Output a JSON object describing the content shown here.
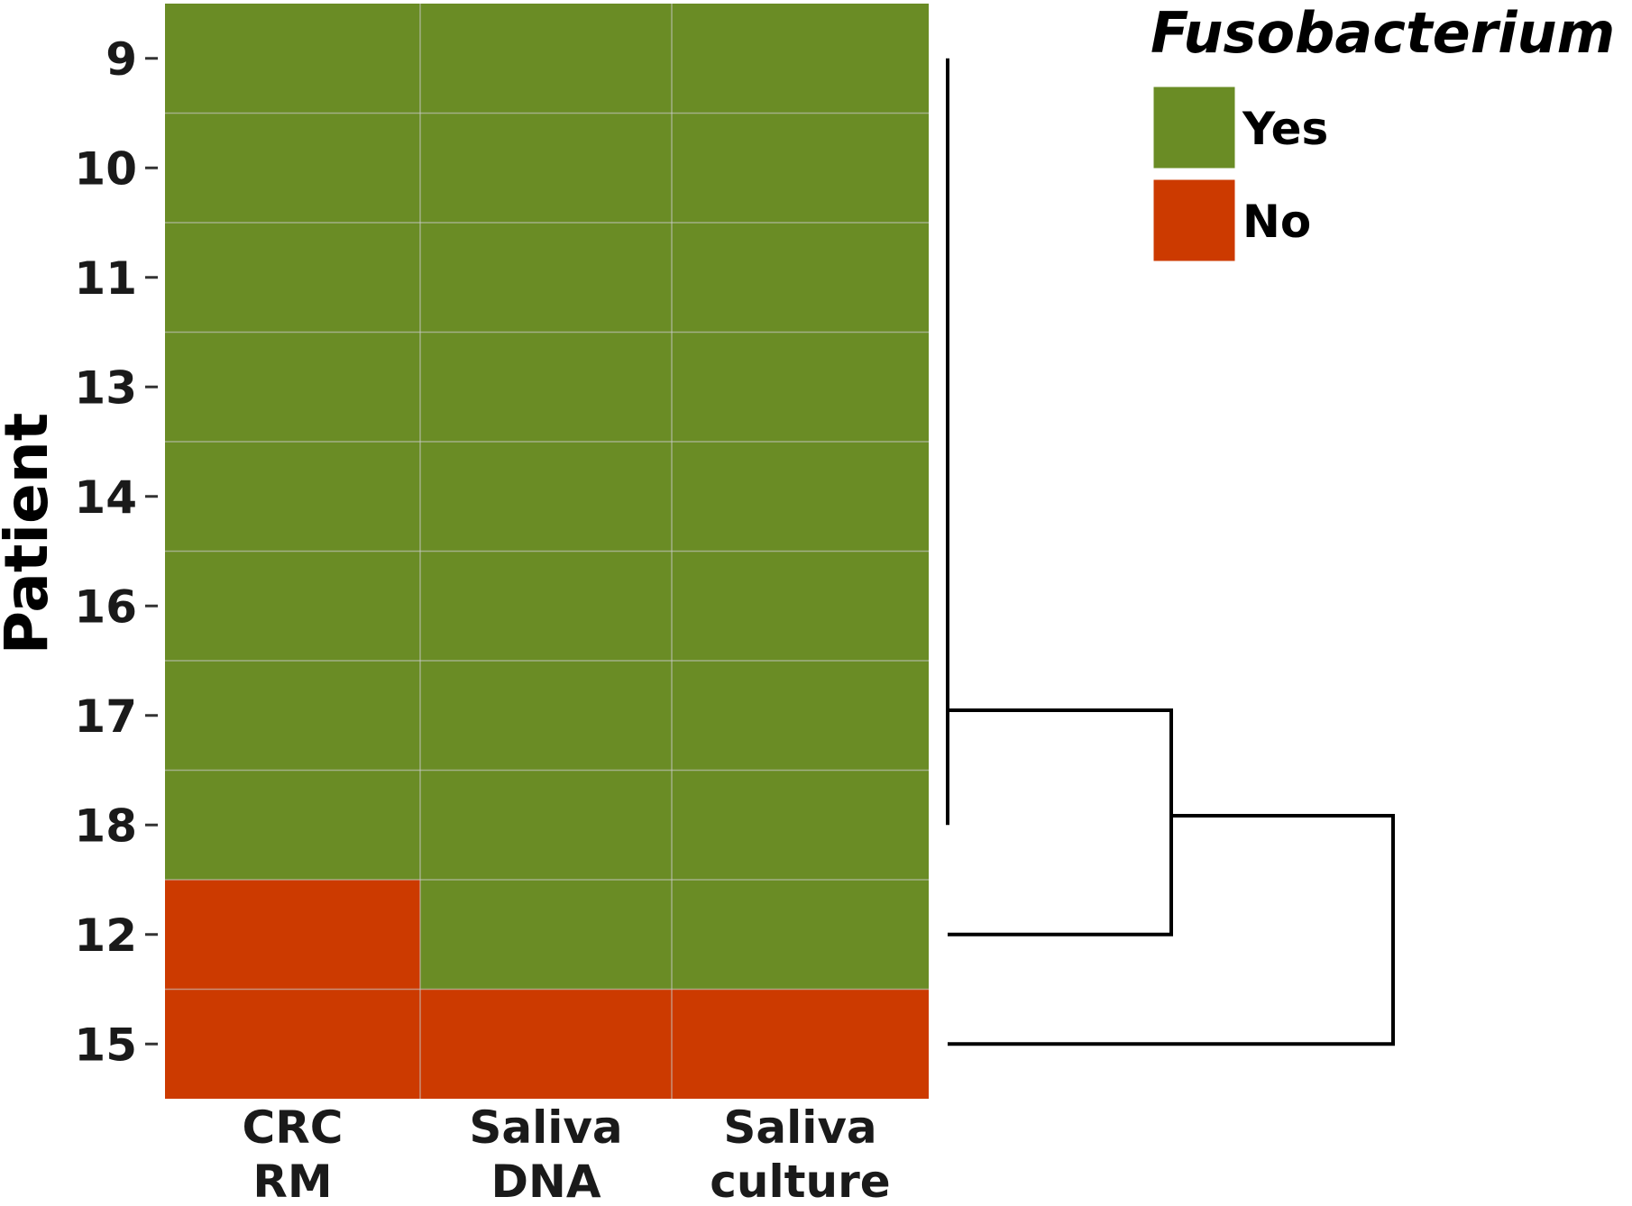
{
  "chart_data": {
    "type": "heatmap",
    "ylabel": "Patient",
    "rows": [
      "9",
      "10",
      "11",
      "13",
      "14",
      "16",
      "17",
      "18",
      "12",
      "15"
    ],
    "columns": [
      [
        "CRC",
        "RM"
      ],
      [
        "Saliva",
        "DNA"
      ],
      [
        "Saliva",
        "culture"
      ]
    ],
    "values": [
      [
        "Yes",
        "Yes",
        "Yes"
      ],
      [
        "Yes",
        "Yes",
        "Yes"
      ],
      [
        "Yes",
        "Yes",
        "Yes"
      ],
      [
        "Yes",
        "Yes",
        "Yes"
      ],
      [
        "Yes",
        "Yes",
        "Yes"
      ],
      [
        "Yes",
        "Yes",
        "Yes"
      ],
      [
        "Yes",
        "Yes",
        "Yes"
      ],
      [
        "Yes",
        "Yes",
        "Yes"
      ],
      [
        "No",
        "Yes",
        "Yes"
      ],
      [
        "No",
        "No",
        "No"
      ]
    ],
    "legend": {
      "title": "Fusobacterium",
      "position": "top-right",
      "items": [
        {
          "label": "Yes",
          "color": "#6a8c25"
        },
        {
          "label": "No",
          "color": "#cc3a00"
        }
      ]
    },
    "dendrogram": {
      "side": "right",
      "clusters": [
        {
          "members": [
            "9",
            "10",
            "11",
            "13",
            "14",
            "16",
            "17",
            "18"
          ],
          "merge_height": 0
        },
        {
          "members": [
            "cluster-1",
            "12"
          ],
          "merge_height": 1
        },
        {
          "members": [
            "cluster-2",
            "15"
          ],
          "merge_height": 2
        }
      ]
    },
    "grid": true
  }
}
